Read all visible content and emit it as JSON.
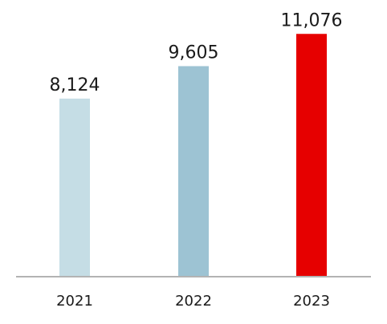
{
  "chart_data": {
    "type": "bar",
    "categories": [
      "2021",
      "2022",
      "2023"
    ],
    "values": [
      8124,
      9605,
      11076
    ],
    "value_labels": [
      "8,124",
      "9,605",
      "11,076"
    ],
    "colors": [
      "#c5dde5",
      "#9dc3d3",
      "#e60000"
    ],
    "axis_color": "#b3b3b3",
    "ylim": [
      0,
      12000
    ],
    "grid": false,
    "legend": "none"
  }
}
